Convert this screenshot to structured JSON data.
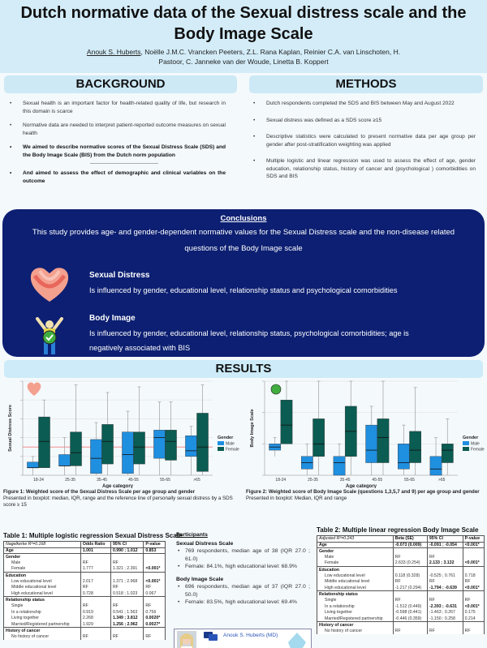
{
  "header": {
    "title": "Dutch normative data of the Sexual distress scale and the Body Image Scale",
    "presenting_author": "Anouk S. Huberts",
    "authors_rest_1": ", Noëlle J.M.C. Vrancken Peeters, Z.L. Rana Kaplan, Reinier C.A. van Linschoten, H.",
    "authors_rest_2": "Pastoor, C. Janneke van der Woude, Linetta B. Koppert"
  },
  "background": {
    "heading": "BACKGROUND",
    "bullets": [
      "Sexual health is an important factor for health-related quality of life, but research in this domain is scarce",
      "Normative data are needed to interpret patient-reported outcome measures on sexual health",
      "We aimed to describe normative scores of the Sexual Distress Scale (SDS) and the Body Image Scale (BIS) from the Dutch norm population",
      "And aimed to assess the effect of demographic and clinical variables on the outcome"
    ],
    "separator": "------------------------------------------"
  },
  "methods": {
    "heading": "METHODS",
    "bullets": [
      "Dutch respondents completed the SDS and BIS between May and August 2022",
      "Sexual distress was defined as a SDS score ≥15",
      "Descriptive statistics were calculated to present normative data per age group per gender after post-stratification weighting was applied",
      "Multiple logistic and linear regression was used to assess the effect of age, gender education, relationship status, history of cancer and (psychological ) comorbidities on SDS and BIS"
    ]
  },
  "conclusions": {
    "heading": "Conclusions",
    "text": "This study provides age- and gender-dependent normative values for the Sexual Distress scale and the non-disease related questions of the Body Image scale",
    "items": [
      {
        "title": "Sexual Distress",
        "text": "Is influenced by gender, educational level, relationship status and psychological comorbidities"
      },
      {
        "title": "Body Image",
        "text": "Is influenced by gender, educational level, relationship status, psychological comorbidities; age is negatively associated with BIS"
      }
    ]
  },
  "results": {
    "heading": "RESULTS"
  },
  "colors": {
    "male": "#1f8fe0",
    "female": "#0b5c52",
    "ref_line": "#f08080",
    "navy": "#0c1f72",
    "section": "#cde9f6"
  },
  "chart_data": [
    {
      "type": "boxplot",
      "ylabel": "Sexual Distress Score",
      "xlabel": "Age category",
      "ylim": [
        0,
        50
      ],
      "grid": true,
      "legend_title": "Gender",
      "legend": "right",
      "reference_line": 15,
      "categories": [
        "18-24",
        "25-35",
        "35-45",
        "45-55",
        "55-65",
        ">65"
      ],
      "series": [
        {
          "name": "Male",
          "boxes": [
            [
              0,
              4,
              4,
              7,
              10
            ],
            [
              0,
              5,
              5,
              11,
              20
            ],
            [
              0,
              1,
              9,
              19,
              28
            ],
            [
              0,
              1,
              11,
              23,
              34
            ],
            [
              0,
              9,
              20,
              24,
              39
            ],
            [
              0,
              10,
              13,
              21,
              26
            ]
          ]
        },
        {
          "name": "Female",
          "boxes": [
            [
              4,
              4,
              18,
              31,
              40
            ],
            [
              0,
              5,
              12,
              23,
              48
            ],
            [
              0,
              6,
              18,
              27,
              44
            ],
            [
              0,
              6,
              15,
              23,
              47
            ],
            [
              0,
              8,
              18,
              24,
              39
            ],
            [
              0,
              2,
              15,
              33,
              48
            ]
          ]
        }
      ]
    },
    {
      "type": "boxplot",
      "ylabel": "Body Image Scale",
      "xlabel": "Age category",
      "ylim": [
        0,
        15
      ],
      "grid": true,
      "legend_title": "Gender",
      "legend": "right",
      "categories": [
        "18-24",
        "25-35",
        "35-45",
        "45-55",
        "55-65",
        ">65"
      ],
      "series": [
        {
          "name": "Male",
          "boxes": [
            [
              3,
              4,
              4.5,
              5,
              6
            ],
            [
              0,
              1,
              2,
              3,
              5
            ],
            [
              0,
              0,
              2,
              3,
              5
            ],
            [
              0,
              2,
              4,
              8,
              11
            ],
            [
              0,
              1,
              2,
              5,
              8
            ],
            [
              0,
              0,
              1,
              3,
              6
            ]
          ]
        },
        {
          "name": "Female",
          "boxes": [
            [
              5,
              5,
              8,
              12,
              15
            ],
            [
              0,
              3,
              5,
              9,
              15
            ],
            [
              0,
              3,
              7,
              11,
              15
            ],
            [
              0,
              2,
              6,
              9,
              15
            ],
            [
              0,
              2,
              4,
              7,
              14
            ],
            [
              0,
              2,
              4,
              5,
              9
            ]
          ]
        }
      ]
    }
  ],
  "figures": {
    "fig1_title": "Figure 1: Weighted score of the Sexual Distress Scale per age group and gender",
    "fig1_text": "Presented in boxplot: median, IQR, range and the reference line of personally sexual distress by a SDS score ≥ 15",
    "fig2_title": "Figure 2: Weighted score of Body Image Scale (questions 1,3,5,7 and 9) per age group and gender",
    "fig2_text": "Presented in boxplot: Median, IQR and range"
  },
  "table1": {
    "title": "Table 1: Multiple logistic regression Sexual Distress Scale",
    "header": [
      "Nagelkerke R²=0.168",
      "Odds Ratio",
      "95% CI",
      "P-value"
    ],
    "rows": [
      {
        "k": "sec",
        "c": [
          "Age",
          "1.001",
          "0.990 ; 1.012",
          "0.853"
        ]
      },
      {
        "k": "sec",
        "c": [
          "Gender",
          "",
          "",
          ""
        ]
      },
      {
        "k": "sub",
        "c": [
          "Male",
          "RF",
          "RF",
          ""
        ]
      },
      {
        "k": "sub",
        "c": [
          "Female",
          "1.777",
          "1.321 ; 2.391",
          "<0.001*"
        ],
        "b": [
          3
        ]
      },
      {
        "k": "sec",
        "c": [
          "Education",
          "",
          "",
          ""
        ]
      },
      {
        "k": "sub",
        "c": [
          "Low educational level",
          "2.017",
          "1.371 ; 2.968",
          "<0.001*"
        ],
        "b": [
          3
        ]
      },
      {
        "k": "sub",
        "c": [
          "Middle educational level",
          "RF",
          "RF",
          "RF"
        ]
      },
      {
        "k": "sub",
        "c": [
          "High educational level",
          "0.728",
          "0.518 ; 1.023",
          "0.067"
        ]
      },
      {
        "k": "sec",
        "c": [
          "Relationship status",
          "",
          "",
          ""
        ]
      },
      {
        "k": "sub",
        "c": [
          "Single",
          "RF",
          "RF",
          "RF"
        ]
      },
      {
        "k": "sub",
        "c": [
          "In a relationship",
          "0.919",
          "0.541 ; 1.563",
          "0.756"
        ]
      },
      {
        "k": "sub",
        "c": [
          "Living together",
          "2.268",
          "1.349 ; 3.812",
          "0.0020*"
        ],
        "b": [
          2,
          3
        ]
      },
      {
        "k": "sub",
        "c": [
          "Married/Registered partnership",
          "1.929",
          "1.256 ; 2.962",
          "0.0027*"
        ],
        "b": [
          2,
          3
        ]
      },
      {
        "k": "sec",
        "c": [
          "History of cancer",
          "",
          "",
          ""
        ]
      },
      {
        "k": "sub",
        "c": [
          "No history of cancer",
          "RF",
          "RF",
          "RF"
        ]
      }
    ]
  },
  "table2": {
    "title": "Table 2: Multiple linear regression Body Image Scale",
    "header": [
      "Adjusted R²=0.243",
      "Beta (SE)",
      "95% CI",
      "P-value"
    ],
    "rows": [
      {
        "k": "sec",
        "c": [
          "Age",
          "-0.073 (0.009)",
          "-0.091 ; -0.054",
          "<0.001*"
        ],
        "b": [
          2,
          3
        ]
      },
      {
        "k": "sec",
        "c": [
          "Gender",
          "",
          "",
          ""
        ]
      },
      {
        "k": "sub",
        "c": [
          "Male",
          "RF",
          "RF",
          ""
        ]
      },
      {
        "k": "sub",
        "c": [
          "Female",
          "2.633 (0.254)",
          "2.133 ; 3.132",
          "<0.001*"
        ],
        "b": [
          2,
          3
        ]
      },
      {
        "k": "sec",
        "c": [
          "Education",
          "",
          "",
          ""
        ]
      },
      {
        "k": "sub",
        "c": [
          "Low educational level",
          "0.118 (0.328)",
          "-0.525 ; 0.761",
          "0.718"
        ]
      },
      {
        "k": "sub",
        "c": [
          "Middle educational level",
          "RF",
          "RF",
          "RF"
        ]
      },
      {
        "k": "sub",
        "c": [
          "High educational level",
          "-1.217 (0.294)",
          "-1.794 ; -0.639",
          "<0.001*"
        ],
        "b": [
          2,
          3
        ]
      },
      {
        "k": "sec",
        "c": [
          "Relationship status",
          "",
          "",
          ""
        ]
      },
      {
        "k": "sub",
        "c": [
          "Single",
          "RF",
          "RF",
          "RF"
        ]
      },
      {
        "k": "sub",
        "c": [
          "In a relationship",
          "-1.512 (0.449)",
          "-2.393 ; -0.631",
          "<0.001*"
        ],
        "b": [
          2,
          3
        ]
      },
      {
        "k": "sub",
        "c": [
          "Living together",
          "-0.598 (0.441)",
          "-1.463 ; 0.267",
          "0.175"
        ]
      },
      {
        "k": "sub",
        "c": [
          "Married/Registered partnership",
          "-0.446 (0.359)",
          "-1.150 ; 0.258",
          "0.214"
        ]
      },
      {
        "k": "sec",
        "c": [
          "History of cancer",
          "",
          "",
          ""
        ]
      },
      {
        "k": "sub",
        "c": [
          "No history of cancer",
          "RF",
          "RF",
          "RF"
        ]
      }
    ]
  },
  "participants": {
    "heading": "Participants",
    "sds_heading": "Sexual Distress Scale",
    "sds": [
      "769 respondents, median age of 38 (IQR 27.0 ; 61.0)",
      "Female: 84.1%, high educational level: 68.9%"
    ],
    "bis_heading": "Body Image Scale",
    "bis": [
      "696 respondents, median age of 37 (IQR 27.0 ; 50.0)",
      "Female: 83.5%, high educational level: 69.4%"
    ]
  },
  "contact": {
    "name": "Anouk S. Huberts (MD)"
  }
}
